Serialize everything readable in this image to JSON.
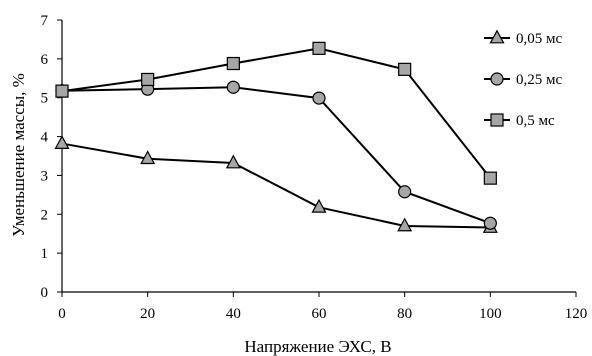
{
  "chart_data": {
    "type": "line",
    "title": "",
    "xlabel": "Напряжение ЭХС, В",
    "ylabel": "Уменьшение массы, %",
    "xlim": [
      0,
      120
    ],
    "ylim": [
      0,
      7
    ],
    "xticks": [
      0,
      20,
      40,
      60,
      80,
      100,
      120
    ],
    "yticks": [
      0,
      1,
      2,
      3,
      4,
      5,
      6,
      7
    ],
    "x": [
      0,
      20,
      40,
      60,
      80,
      100
    ],
    "grid": false,
    "legend_position": "top-right",
    "series": [
      {
        "name": "0,05 мс",
        "marker": "triangle",
        "values": [
          3.82,
          3.43,
          3.32,
          2.18,
          1.7,
          1.66
        ]
      },
      {
        "name": "0,25 мс",
        "marker": "circle",
        "values": [
          5.18,
          5.22,
          5.27,
          4.99,
          2.58,
          1.77
        ]
      },
      {
        "name": "0,5 мс",
        "marker": "square",
        "values": [
          5.17,
          5.47,
          5.88,
          6.27,
          5.73,
          2.93
        ]
      }
    ],
    "marker_fill": "#a6a6a6",
    "line_color": "#000000"
  }
}
